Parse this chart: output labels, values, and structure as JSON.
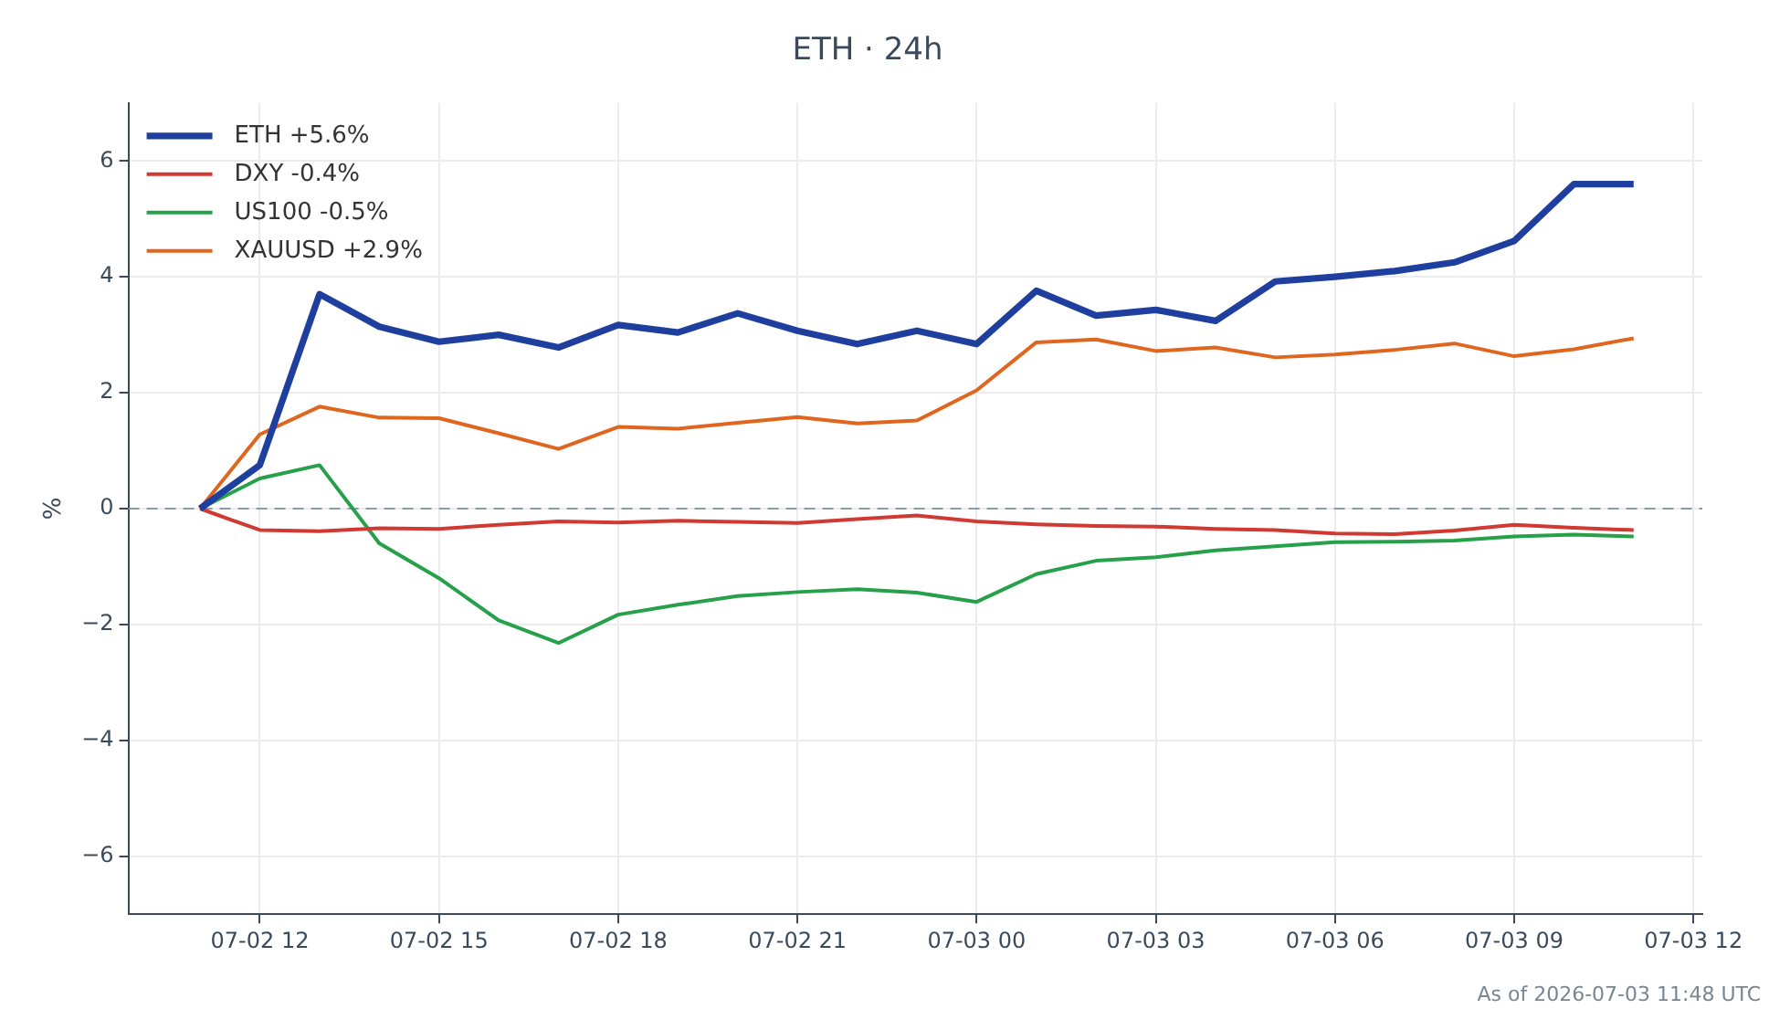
{
  "chart_data": {
    "type": "line",
    "title": "ETH · 24h",
    "ylabel": "%",
    "annotations": [
      "As of 2026-07-03 11:48 UTC"
    ],
    "x": [
      "--07-02T11:00",
      "--07-02T12:00",
      "--07-02T13:00",
      "--07-02T14:00",
      "--07-02T15:00",
      "--07-02T16:00",
      "--07-02T17:00",
      "--07-02T18:00",
      "--07-02T19:00",
      "--07-02T20:00",
      "--07-02T21:00",
      "--07-02T22:00",
      "--07-02T23:00",
      "--07-03T00:00",
      "--07-03T01:00",
      "--07-03T02:00",
      "--07-03T03:00",
      "--07-03T04:00",
      "--07-03T05:00",
      "--07-03T06:00",
      "--07-03T07:00",
      "--07-03T08:00",
      "--07-03T09:00",
      "--07-03T10:00",
      "--07-03T11:00"
    ],
    "series": [
      {
        "name": "ETH +5.6%",
        "color": "#1f3f9e",
        "values": [
          0,
          0.75,
          3.7,
          3.14,
          2.88,
          3.0,
          2.78,
          3.17,
          3.04,
          3.37,
          3.07,
          2.84,
          3.07,
          2.84,
          3.76,
          3.33,
          3.43,
          3.24,
          3.92,
          4.0,
          4.1,
          4.25,
          4.62,
          5.6,
          5.6
        ]
      },
      {
        "name": "DXY -0.4%",
        "color": "#d03a33",
        "values": [
          0,
          -0.37,
          -0.39,
          -0.34,
          -0.35,
          -0.28,
          -0.22,
          -0.24,
          -0.21,
          -0.23,
          -0.25,
          -0.18,
          -0.12,
          -0.22,
          -0.27,
          -0.3,
          -0.31,
          -0.35,
          -0.37,
          -0.43,
          -0.44,
          -0.38,
          -0.28,
          -0.33,
          -0.37
        ]
      },
      {
        "name": "US100 -0.5%",
        "color": "#27a04a",
        "values": [
          0,
          0.52,
          0.75,
          -0.6,
          -1.2,
          -1.93,
          -2.32,
          -1.83,
          -1.66,
          -1.51,
          -1.44,
          -1.39,
          -1.45,
          -1.61,
          -1.13,
          -0.9,
          -0.84,
          -0.72,
          -0.65,
          -0.58,
          -0.57,
          -0.55,
          -0.48,
          -0.45,
          -0.48
        ]
      },
      {
        "name": "XAUUSD +2.9%",
        "color": "#e0661f",
        "values": [
          0,
          1.28,
          1.76,
          1.57,
          1.56,
          1.3,
          1.03,
          1.41,
          1.38,
          1.48,
          1.58,
          1.47,
          1.52,
          2.04,
          2.87,
          2.92,
          2.72,
          2.78,
          2.61,
          2.66,
          2.74,
          2.85,
          2.63,
          2.75,
          2.94
        ]
      }
    ],
    "xlim": [
      "--07-02T09:48",
      "--07-03T12:09"
    ],
    "xticks": [
      {
        "value": "--07-02T12:00",
        "label": "07-02 12"
      },
      {
        "value": "--07-02T15:00",
        "label": "07-02 15"
      },
      {
        "value": "--07-02T18:00",
        "label": "07-02 18"
      },
      {
        "value": "--07-02T21:00",
        "label": "07-02 21"
      },
      {
        "value": "--07-03T00:00",
        "label": "07-03 00"
      },
      {
        "value": "--07-03T03:00",
        "label": "07-03 03"
      },
      {
        "value": "--07-03T06:00",
        "label": "07-03 06"
      },
      {
        "value": "--07-03T09:00",
        "label": "07-03 09"
      },
      {
        "value": "--07-03T12:00",
        "label": "07-03 12"
      }
    ],
    "ylim": [
      -7,
      7
    ],
    "yticks": [
      {
        "value": -6,
        "label": "−6"
      },
      {
        "value": -4,
        "label": "−4"
      },
      {
        "value": -2,
        "label": "−2"
      },
      0,
      2,
      4,
      6
    ],
    "ref_lines": [
      {
        "axis": "y",
        "value": 0,
        "color": "#8a9bb0",
        "line_style": "dashed"
      }
    ],
    "grid": true,
    "legend": "top left",
    "marker": "none",
    "line_style": "solid"
  }
}
